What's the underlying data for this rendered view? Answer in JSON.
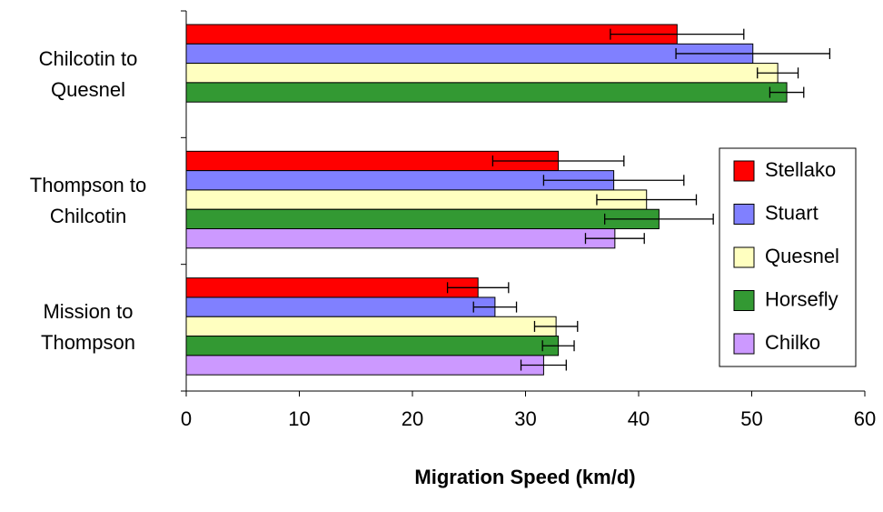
{
  "chart_data": {
    "type": "hbar",
    "x_label": "Migration Speed (km/d)",
    "categories": [
      "Chilcotin to Quesnel",
      "Thompson to Chilcotin",
      "Mission to Thompson"
    ],
    "series": [
      {
        "name": "Stellako",
        "color": "#ff0000",
        "values": [
          43.4,
          32.9,
          25.8
        ],
        "errors": [
          5.9,
          5.8,
          2.7
        ]
      },
      {
        "name": "Stuart",
        "color": "#8080ff",
        "values": [
          50.1,
          37.8,
          27.3
        ],
        "errors": [
          6.8,
          6.2,
          1.9
        ]
      },
      {
        "name": "Quesnel",
        "color": "#ffffc0",
        "values": [
          52.3,
          40.7,
          32.7
        ],
        "errors": [
          1.8,
          4.4,
          1.9
        ]
      },
      {
        "name": "Horsefly",
        "color": "#339933",
        "values": [
          53.1,
          41.8,
          32.9
        ],
        "errors": [
          1.5,
          4.8,
          1.4
        ]
      },
      {
        "name": "Chilko",
        "color": "#cc99ff",
        "values": [
          null,
          37.9,
          31.6
        ],
        "errors": [
          null,
          2.6,
          2.0
        ]
      }
    ],
    "xlim": [
      0,
      60
    ],
    "xticks": [
      0,
      10,
      20,
      30,
      40,
      50,
      60
    ],
    "legend": "right"
  }
}
